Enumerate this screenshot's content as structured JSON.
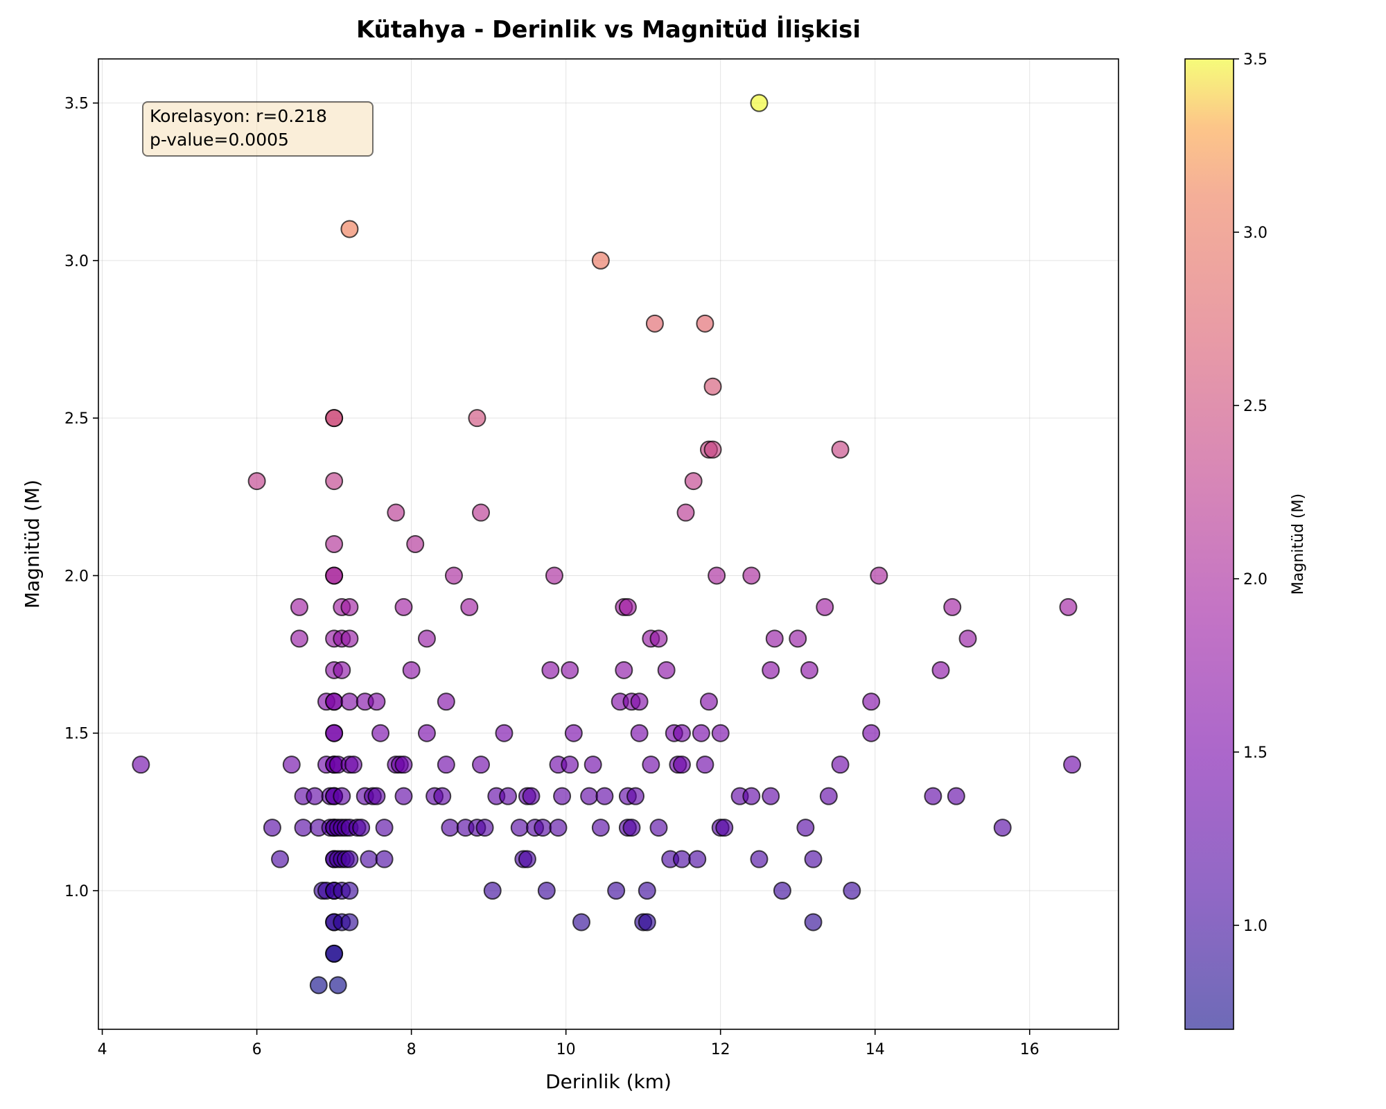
{
  "chart_data": {
    "type": "scatter",
    "title": "Kütahya - Derinlik vs Magnitüd İlişkisi",
    "xlabel": "Derinlik (km)",
    "ylabel": "Magnitüd (M)",
    "xlim": [
      3.95,
      17.15
    ],
    "ylim": [
      0.56,
      3.64
    ],
    "xticks": [
      4,
      6,
      8,
      10,
      12,
      14,
      16
    ],
    "yticks": [
      1.0,
      1.5,
      2.0,
      2.5,
      3.0,
      3.5
    ],
    "grid": true,
    "colormap": "plasma",
    "colorbar": {
      "label": "Magnitüd (M)",
      "range": [
        0.7,
        3.5
      ],
      "ticks": [
        1.0,
        1.5,
        2.0,
        2.5,
        3.0,
        3.5
      ]
    },
    "annotation": {
      "line1": "Korelasyon: r=0.218",
      "line2": "p-value=0.0005"
    },
    "points": [
      [
        4.5,
        1.4
      ],
      [
        6.0,
        2.3
      ],
      [
        6.2,
        1.2
      ],
      [
        6.3,
        1.1
      ],
      [
        6.45,
        1.4
      ],
      [
        6.55,
        1.9
      ],
      [
        6.55,
        1.8
      ],
      [
        6.6,
        1.3
      ],
      [
        6.6,
        1.2
      ],
      [
        6.75,
        1.3
      ],
      [
        6.8,
        1.2
      ],
      [
        6.8,
        0.7
      ],
      [
        6.85,
        1.0
      ],
      [
        6.9,
        1.0
      ],
      [
        6.9,
        1.6
      ],
      [
        6.9,
        1.4
      ],
      [
        6.95,
        1.3
      ],
      [
        6.95,
        1.2
      ],
      [
        7.0,
        2.5
      ],
      [
        7.0,
        2.5
      ],
      [
        7.0,
        2.3
      ],
      [
        7.0,
        2.1
      ],
      [
        7.0,
        2.0
      ],
      [
        7.0,
        2.0
      ],
      [
        7.0,
        1.8
      ],
      [
        7.0,
        1.7
      ],
      [
        7.0,
        1.6
      ],
      [
        7.0,
        1.6
      ],
      [
        7.0,
        1.5
      ],
      [
        7.0,
        1.5
      ],
      [
        7.0,
        1.4
      ],
      [
        7.0,
        1.4
      ],
      [
        7.0,
        1.3
      ],
      [
        7.0,
        1.3
      ],
      [
        7.0,
        1.2
      ],
      [
        7.0,
        1.2
      ],
      [
        7.0,
        1.1
      ],
      [
        7.0,
        1.1
      ],
      [
        7.0,
        1.0
      ],
      [
        7.0,
        1.0
      ],
      [
        7.0,
        0.9
      ],
      [
        7.0,
        0.9
      ],
      [
        7.0,
        0.8
      ],
      [
        7.0,
        0.8
      ],
      [
        7.05,
        0.7
      ],
      [
        7.05,
        1.4
      ],
      [
        7.05,
        1.2
      ],
      [
        7.05,
        1.1
      ],
      [
        7.1,
        1.9
      ],
      [
        7.1,
        1.8
      ],
      [
        7.1,
        1.7
      ],
      [
        7.1,
        1.3
      ],
      [
        7.1,
        1.2
      ],
      [
        7.1,
        1.1
      ],
      [
        7.1,
        1.0
      ],
      [
        7.1,
        0.9
      ],
      [
        7.15,
        1.2
      ],
      [
        7.15,
        1.1
      ],
      [
        7.2,
        1.9
      ],
      [
        7.2,
        1.8
      ],
      [
        7.2,
        1.6
      ],
      [
        7.2,
        1.4
      ],
      [
        7.2,
        1.2
      ],
      [
        7.2,
        1.1
      ],
      [
        7.2,
        1.0
      ],
      [
        7.2,
        0.9
      ],
      [
        7.2,
        3.1
      ],
      [
        7.25,
        1.4
      ],
      [
        7.3,
        1.2
      ],
      [
        7.35,
        1.2
      ],
      [
        7.4,
        1.6
      ],
      [
        7.4,
        1.3
      ],
      [
        7.45,
        1.1
      ],
      [
        7.5,
        1.3
      ],
      [
        7.55,
        1.3
      ],
      [
        7.55,
        1.6
      ],
      [
        7.6,
        1.5
      ],
      [
        7.65,
        1.2
      ],
      [
        7.65,
        1.1
      ],
      [
        7.8,
        1.4
      ],
      [
        7.8,
        2.2
      ],
      [
        7.85,
        1.4
      ],
      [
        7.9,
        1.4
      ],
      [
        7.9,
        1.9
      ],
      [
        7.9,
        1.3
      ],
      [
        8.0,
        1.7
      ],
      [
        8.05,
        2.1
      ],
      [
        8.2,
        1.8
      ],
      [
        8.2,
        1.5
      ],
      [
        8.3,
        1.3
      ],
      [
        8.4,
        1.3
      ],
      [
        8.45,
        1.6
      ],
      [
        8.45,
        1.4
      ],
      [
        8.5,
        1.2
      ],
      [
        8.55,
        2.0
      ],
      [
        8.7,
        1.2
      ],
      [
        8.75,
        1.9
      ],
      [
        8.85,
        2.5
      ],
      [
        8.85,
        1.2
      ],
      [
        8.9,
        2.2
      ],
      [
        8.9,
        1.4
      ],
      [
        8.95,
        1.2
      ],
      [
        9.05,
        1.0
      ],
      [
        9.1,
        1.3
      ],
      [
        9.2,
        1.5
      ],
      [
        9.25,
        1.3
      ],
      [
        9.4,
        1.2
      ],
      [
        9.45,
        1.1
      ],
      [
        9.5,
        1.3
      ],
      [
        9.5,
        1.1
      ],
      [
        9.55,
        1.3
      ],
      [
        9.6,
        1.2
      ],
      [
        9.7,
        1.2
      ],
      [
        9.75,
        1.0
      ],
      [
        9.8,
        1.7
      ],
      [
        9.85,
        2.0
      ],
      [
        9.9,
        1.2
      ],
      [
        9.9,
        1.4
      ],
      [
        9.95,
        1.3
      ],
      [
        10.05,
        1.4
      ],
      [
        10.05,
        1.7
      ],
      [
        10.1,
        1.5
      ],
      [
        10.2,
        0.9
      ],
      [
        10.3,
        1.3
      ],
      [
        10.35,
        1.4
      ],
      [
        10.45,
        3.0
      ],
      [
        10.45,
        1.2
      ],
      [
        10.5,
        1.3
      ],
      [
        10.65,
        1.0
      ],
      [
        10.7,
        1.6
      ],
      [
        10.75,
        1.9
      ],
      [
        10.75,
        1.7
      ],
      [
        10.8,
        1.3
      ],
      [
        10.8,
        1.9
      ],
      [
        10.8,
        1.2
      ],
      [
        10.85,
        1.6
      ],
      [
        10.85,
        1.2
      ],
      [
        10.9,
        1.3
      ],
      [
        10.95,
        1.6
      ],
      [
        10.95,
        1.5
      ],
      [
        11.0,
        0.9
      ],
      [
        11.05,
        0.9
      ],
      [
        11.05,
        1.0
      ],
      [
        11.1,
        1.8
      ],
      [
        11.1,
        1.4
      ],
      [
        11.15,
        2.8
      ],
      [
        11.2,
        1.2
      ],
      [
        11.2,
        1.8
      ],
      [
        11.3,
        1.7
      ],
      [
        11.35,
        1.1
      ],
      [
        11.4,
        1.5
      ],
      [
        11.45,
        1.4
      ],
      [
        11.5,
        1.5
      ],
      [
        11.5,
        1.4
      ],
      [
        11.5,
        1.1
      ],
      [
        11.55,
        2.2
      ],
      [
        11.65,
        2.3
      ],
      [
        11.7,
        1.1
      ],
      [
        11.75,
        1.5
      ],
      [
        11.8,
        2.8
      ],
      [
        11.8,
        1.4
      ],
      [
        11.85,
        2.4
      ],
      [
        11.85,
        1.6
      ],
      [
        11.9,
        2.6
      ],
      [
        11.9,
        2.4
      ],
      [
        11.95,
        2.0
      ],
      [
        12.0,
        1.5
      ],
      [
        12.0,
        1.2
      ],
      [
        12.05,
        1.2
      ],
      [
        12.25,
        1.3
      ],
      [
        12.4,
        2.0
      ],
      [
        12.4,
        1.3
      ],
      [
        12.5,
        1.1
      ],
      [
        12.5,
        3.5
      ],
      [
        12.65,
        1.3
      ],
      [
        12.65,
        1.7
      ],
      [
        12.7,
        1.8
      ],
      [
        12.8,
        1.0
      ],
      [
        13.0,
        1.8
      ],
      [
        13.1,
        1.2
      ],
      [
        13.15,
        1.7
      ],
      [
        13.2,
        0.9
      ],
      [
        13.2,
        1.1
      ],
      [
        13.35,
        1.9
      ],
      [
        13.4,
        1.3
      ],
      [
        13.55,
        1.4
      ],
      [
        13.55,
        2.4
      ],
      [
        13.7,
        1.0
      ],
      [
        13.95,
        1.6
      ],
      [
        13.95,
        1.5
      ],
      [
        14.05,
        2.0
      ],
      [
        14.75,
        1.3
      ],
      [
        14.85,
        1.7
      ],
      [
        15.0,
        1.9
      ],
      [
        15.05,
        1.3
      ],
      [
        15.2,
        1.8
      ],
      [
        15.65,
        1.2
      ],
      [
        16.5,
        1.9
      ],
      [
        16.55,
        1.4
      ]
    ]
  }
}
